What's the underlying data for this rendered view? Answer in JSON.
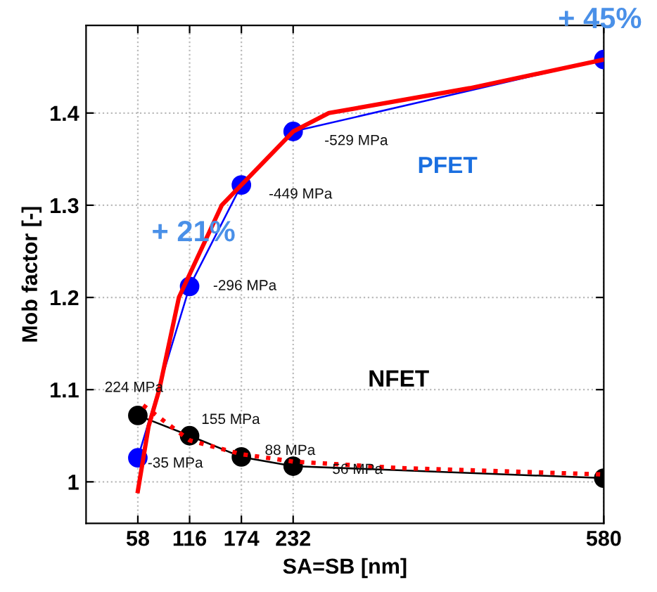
{
  "chart_data": {
    "type": "line",
    "xlabel": "SA=SB [nm]",
    "ylabel": "Mob factor [-]",
    "x": [
      58,
      116,
      174,
      232,
      580
    ],
    "series": [
      {
        "name": "PFET",
        "color": "#0000ff",
        "values": [
          1.026,
          1.212,
          1.322,
          1.38,
          1.458
        ],
        "marker": "circle"
      },
      {
        "name": "NFET",
        "color": "#000000",
        "values": [
          1.072,
          1.05,
          1.027,
          1.017,
          1.004
        ],
        "marker": "circle"
      },
      {
        "color": "#ff0000",
        "x": [
          58,
          70,
          82,
          104,
          152,
          232,
          272,
          430,
          580
        ],
        "values": [
          0.99,
          1.06,
          1.1,
          1.2,
          1.3,
          1.38,
          1.4,
          1.427,
          1.458
        ],
        "marker": "none"
      },
      {
        "color": "#ff0000",
        "x": [
          64,
          116,
          174,
          232,
          350,
          580
        ],
        "values": [
          1.083,
          1.045,
          1.03,
          1.022,
          1.015,
          1.008
        ],
        "marker": "none",
        "line_style": "dotted"
      }
    ],
    "xlim": [
      0,
      580
    ],
    "ylim": [
      0.955,
      1.495
    ],
    "xticks": [
      58,
      116,
      174,
      232,
      580
    ],
    "yticks": [
      1,
      1.1,
      1.2,
      1.3,
      1.4
    ],
    "grid": true,
    "annotations": [
      {
        "text": "-35 MPa",
        "x": 58,
        "y": 1.026
      },
      {
        "text": "-296 MPa",
        "x": 116,
        "y": 1.212
      },
      {
        "text": "-449 MPa",
        "x": 174,
        "y": 1.322
      },
      {
        "text": "-529 MPa",
        "x": 232,
        "y": 1.38
      },
      {
        "text": "224 MPa",
        "x": 58,
        "y": 1.072
      },
      {
        "text": "155 MPa",
        "x": 116,
        "y": 1.05
      },
      {
        "text": "88 MPa",
        "x": 174,
        "y": 1.027
      },
      {
        "text": "56 MPa",
        "x": 232,
        "y": 1.017
      },
      {
        "text": "+ 21%",
        "x": 116,
        "y": 1.212
      },
      {
        "text": "+ 45%",
        "x": 580,
        "y": 1.458
      }
    ]
  }
}
